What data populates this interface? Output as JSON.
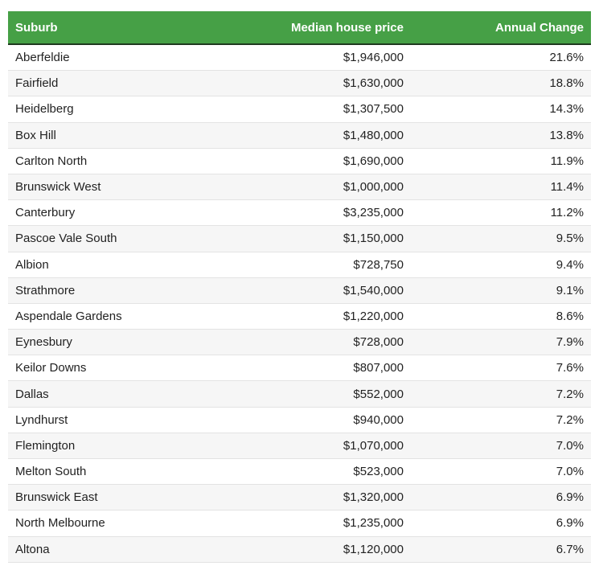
{
  "table": {
    "header": [
      "Suburb",
      "Median house price",
      "Annual Change"
    ],
    "rows": [
      [
        "Aberfeldie",
        "$1,946,000",
        "21.6%"
      ],
      [
        "Fairfield",
        "$1,630,000",
        "18.8%"
      ],
      [
        "Heidelberg",
        "$1,307,500",
        "14.3%"
      ],
      [
        "Box Hill",
        "$1,480,000",
        "13.8%"
      ],
      [
        "Carlton North",
        "$1,690,000",
        "11.9%"
      ],
      [
        "Brunswick West",
        "$1,000,000",
        "11.4%"
      ],
      [
        "Canterbury",
        "$3,235,000",
        "11.2%"
      ],
      [
        "Pascoe Vale South",
        "$1,150,000",
        "9.5%"
      ],
      [
        "Albion",
        "$728,750",
        "9.4%"
      ],
      [
        "Strathmore",
        "$1,540,000",
        "9.1%"
      ],
      [
        "Aspendale Gardens",
        "$1,220,000",
        "8.6%"
      ],
      [
        "Eynesbury",
        "$728,000",
        "7.9%"
      ],
      [
        "Keilor Downs",
        "$807,000",
        "7.6%"
      ],
      [
        "Dallas",
        "$552,000",
        "7.2%"
      ],
      [
        "Lyndhurst",
        "$940,000",
        "7.2%"
      ],
      [
        "Flemington",
        "$1,070,000",
        "7.0%"
      ],
      [
        "Melton South",
        "$523,000",
        "7.0%"
      ],
      [
        "Brunswick East",
        "$1,320,000",
        "6.9%"
      ],
      [
        "North Melbourne",
        "$1,235,000",
        "6.9%"
      ],
      [
        "Altona",
        "$1,120,000",
        "6.7%"
      ]
    ]
  }
}
